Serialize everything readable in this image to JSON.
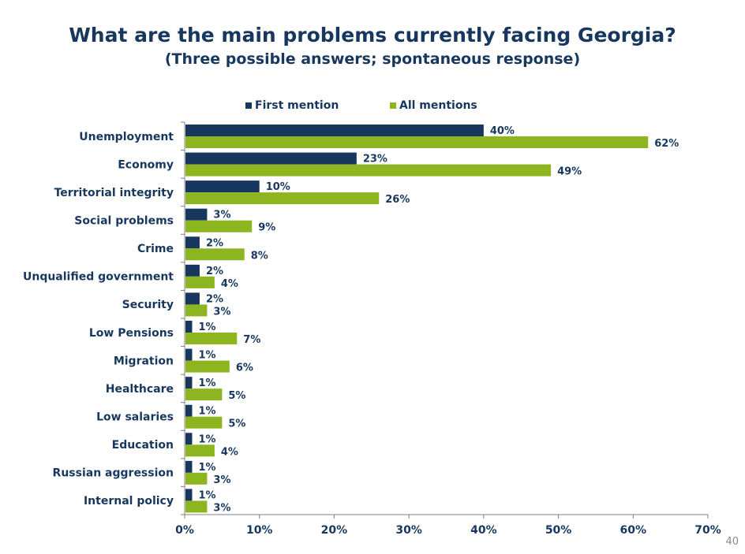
{
  "title": "What are the main problems currently facing Georgia?",
  "subtitle": "(Three possible answers; spontaneous response)",
  "page_number": "40",
  "colors": {
    "first": "#17375e",
    "all": "#8db520",
    "text": "#17375e",
    "axis": "#808080"
  },
  "chart_data": {
    "type": "bar",
    "orientation": "horizontal",
    "categories": [
      "Unemployment",
      "Economy",
      "Territorial integrity",
      "Social problems",
      "Crime",
      "Unqualified government",
      "Security",
      "Low Pensions",
      "Migration",
      "Healthcare",
      "Low salaries",
      "Education",
      "Russian aggression",
      "Internal policy"
    ],
    "series": [
      {
        "name": "First mention",
        "values": [
          40,
          23,
          10,
          3,
          2,
          2,
          2,
          1,
          1,
          1,
          1,
          1,
          1,
          1
        ]
      },
      {
        "name": "All mentions",
        "values": [
          62,
          49,
          26,
          9,
          8,
          4,
          3,
          7,
          6,
          5,
          5,
          4,
          3,
          3
        ]
      }
    ],
    "value_suffix": "%",
    "xlim": [
      0,
      70
    ],
    "xticks": [
      "0%",
      "10%",
      "20%",
      "30%",
      "40%",
      "50%",
      "60%",
      "70%"
    ],
    "legend_position": "top"
  }
}
